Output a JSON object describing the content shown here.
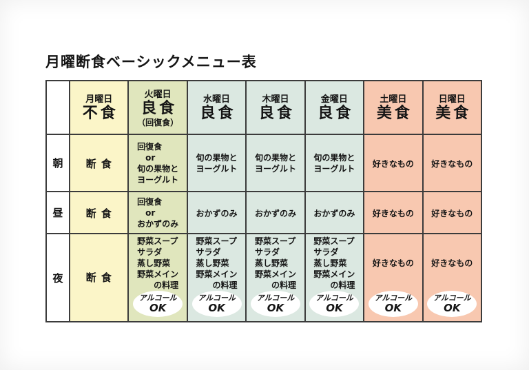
{
  "title": "月曜断食ベーシックメニュー表",
  "colors": {
    "mon": "#fbf5c8",
    "tue": "#e0e6bd",
    "weekday": "#dbe8e1",
    "weekend": "#f8c8b0",
    "border": "#3b3b3b",
    "badge_bg": "#ffffff",
    "text": "#151515"
  },
  "header": {
    "days": [
      {
        "key": "mon",
        "day": "月曜日",
        "type": "不食",
        "note": "",
        "theme": "mon"
      },
      {
        "key": "tue",
        "day": "火曜日",
        "type": "良食",
        "note": "（回復食）",
        "theme": "tue"
      },
      {
        "key": "wed",
        "day": "水曜日",
        "type": "良食",
        "note": "",
        "theme": "weekday"
      },
      {
        "key": "thu",
        "day": "木曜日",
        "type": "良食",
        "note": "",
        "theme": "weekday"
      },
      {
        "key": "fri",
        "day": "金曜日",
        "type": "良食",
        "note": "",
        "theme": "weekday"
      },
      {
        "key": "sat",
        "day": "土曜日",
        "type": "美食",
        "note": "",
        "theme": "weekend"
      },
      {
        "key": "sun",
        "day": "日曜日",
        "type": "美食",
        "note": "",
        "theme": "weekend"
      }
    ]
  },
  "rows": [
    {
      "key": "morning",
      "label": "朝",
      "cells": [
        {
          "lines": [
            "断 食"
          ],
          "emphasis": true
        },
        {
          "lines": [
            "回復食",
            "　or",
            "旬の果物と",
            "ヨーグルト"
          ]
        },
        {
          "lines": [
            "旬の果物と",
            "ヨーグルト"
          ]
        },
        {
          "lines": [
            "旬の果物と",
            "ヨーグルト"
          ]
        },
        {
          "lines": [
            "旬の果物と",
            "ヨーグルト"
          ]
        },
        {
          "lines": [
            "好きなもの"
          ]
        },
        {
          "lines": [
            "好きなもの"
          ]
        }
      ]
    },
    {
      "key": "noon",
      "label": "昼",
      "cells": [
        {
          "lines": [
            "断 食"
          ],
          "emphasis": true
        },
        {
          "lines": [
            "回復食",
            "　or",
            "おかずのみ"
          ]
        },
        {
          "lines": [
            "おかずのみ"
          ]
        },
        {
          "lines": [
            "おかずのみ"
          ]
        },
        {
          "lines": [
            "おかずのみ"
          ]
        },
        {
          "lines": [
            "好きなもの"
          ]
        },
        {
          "lines": [
            "好きなもの"
          ]
        }
      ]
    },
    {
      "key": "evening",
      "label": "夜",
      "cells": [
        {
          "lines": [
            "断 食"
          ],
          "emphasis": true,
          "alcohol": false
        },
        {
          "lines": [
            "野菜スープ",
            "サラダ",
            "蒸し野菜",
            "野菜メイン",
            "　　の料理"
          ],
          "alcohol": true
        },
        {
          "lines": [
            "野菜スープ",
            "サラダ",
            "蒸し野菜",
            "野菜メイン",
            "　　の料理"
          ],
          "alcohol": true
        },
        {
          "lines": [
            "野菜スープ",
            "サラダ",
            "蒸し野菜",
            "野菜メイン",
            "　　の料理"
          ],
          "alcohol": true
        },
        {
          "lines": [
            "野菜スープ",
            "サラダ",
            "蒸し野菜",
            "野菜メイン",
            "　　の料理"
          ],
          "alcohol": true
        },
        {
          "lines": [
            "好きなもの"
          ],
          "alcohol": true
        },
        {
          "lines": [
            "好きなもの"
          ],
          "alcohol": true
        }
      ]
    }
  ],
  "alcohol_badge": {
    "line1": "アルコール",
    "line2": "OK"
  }
}
